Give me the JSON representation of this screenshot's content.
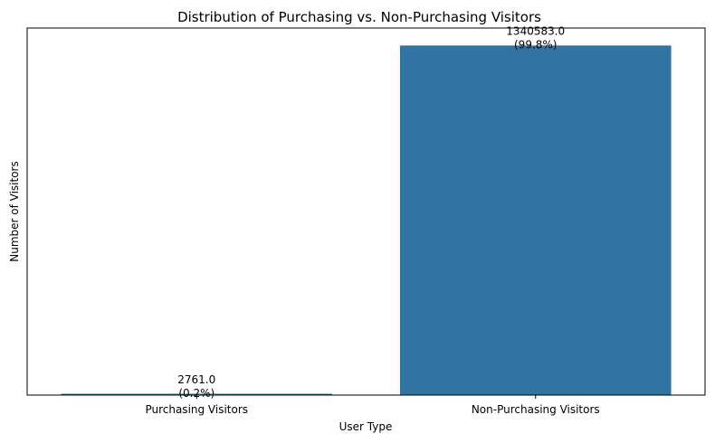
{
  "chart_data": {
    "type": "bar",
    "title": "Distribution of Purchasing vs. Non-Purchasing Visitors",
    "xlabel": "User Type",
    "ylabel": "Number of Visitors",
    "categories": [
      "Purchasing Visitors",
      "Non-Purchasing Visitors"
    ],
    "values": [
      2761.0,
      1340583.0
    ],
    "value_labels": [
      "2761.0",
      "1340583.0"
    ],
    "percent_labels": [
      "(0.2%)",
      "(99.8%)"
    ],
    "ylim": [
      0,
      1407612
    ],
    "y_ticks_visible": false,
    "grid": false,
    "legend": "none",
    "bar_color": "#3274a1"
  }
}
